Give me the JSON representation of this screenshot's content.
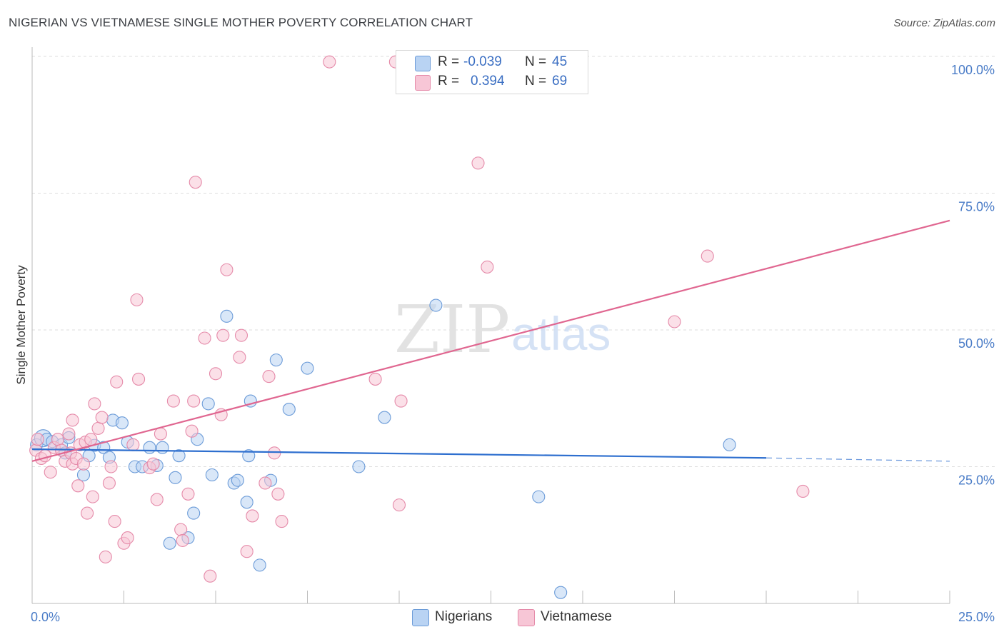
{
  "header": {
    "title": "NIGERIAN VS VIETNAMESE SINGLE MOTHER POVERTY CORRELATION CHART",
    "source": "Source: ZipAtlas.com"
  },
  "legend": {
    "rows": [
      {
        "r_label": "R =",
        "r_value": "-0.039",
        "n_label": "N =",
        "n_value": "45"
      },
      {
        "r_label": "R =",
        "r_value": "0.394",
        "n_label": "N =",
        "n_value": "69"
      }
    ]
  },
  "bottom_legend": {
    "items": [
      {
        "label": "Nigerians"
      },
      {
        "label": "Vietnamese"
      }
    ]
  },
  "watermark": {
    "zip": "ZIP",
    "atlas": "atlas"
  },
  "colors": {
    "nigerians_fill": "#b9d3f3",
    "nigerians_stroke": "#6b9bd8",
    "nigerians_line": "#2e6fcf",
    "vietnamese_fill": "#f7c6d6",
    "vietnamese_stroke": "#e58aa9",
    "vietnamese_line": "#e06690",
    "tick_text": "#4a7cc7",
    "grid": "#dddddd"
  },
  "chart_data": {
    "type": "scatter",
    "title": "NIGERIAN VS VIETNAMESE SINGLE MOTHER POVERTY CORRELATION CHART",
    "xlabel": "",
    "ylabel": "Single Mother Poverty",
    "xlim": [
      0,
      25
    ],
    "ylim": [
      0,
      100
    ],
    "x_tick_labels": [
      "0.0%",
      "25.0%"
    ],
    "y_tick_labels": [
      "25.0%",
      "50.0%",
      "75.0%",
      "100.0%"
    ],
    "y_ticks": [
      25,
      50,
      75,
      100
    ],
    "grid": true,
    "legend_position": "top-center",
    "series": [
      {
        "name": "Nigerians",
        "r": -0.039,
        "n": 45,
        "trend": {
          "x": [
            0,
            20
          ],
          "y": [
            28.2,
            26.6
          ],
          "dashed_to_x": 25,
          "dashed_to_y": 26.0
        },
        "points": [
          {
            "x": 0.12,
            "y": 29.0
          },
          {
            "x": 0.3,
            "y": 30.2
          },
          {
            "x": 0.4,
            "y": 30.0
          },
          {
            "x": 0.55,
            "y": 29.6
          },
          {
            "x": 0.8,
            "y": 29.0
          },
          {
            "x": 0.9,
            "y": 27.5
          },
          {
            "x": 1.0,
            "y": 30.3
          },
          {
            "x": 1.4,
            "y": 23.5
          },
          {
            "x": 1.55,
            "y": 27.0
          },
          {
            "x": 1.7,
            "y": 28.9
          },
          {
            "x": 1.95,
            "y": 28.5
          },
          {
            "x": 2.1,
            "y": 26.7
          },
          {
            "x": 2.2,
            "y": 33.5
          },
          {
            "x": 2.45,
            "y": 33.0
          },
          {
            "x": 2.6,
            "y": 29.5
          },
          {
            "x": 2.8,
            "y": 25.0
          },
          {
            "x": 3.0,
            "y": 25.0
          },
          {
            "x": 3.2,
            "y": 28.5
          },
          {
            "x": 3.4,
            "y": 25.2
          },
          {
            "x": 3.55,
            "y": 28.5
          },
          {
            "x": 3.75,
            "y": 11.0
          },
          {
            "x": 3.9,
            "y": 23.0
          },
          {
            "x": 4.0,
            "y": 27.0
          },
          {
            "x": 4.25,
            "y": 12.0
          },
          {
            "x": 4.4,
            "y": 16.5
          },
          {
            "x": 4.5,
            "y": 30.0
          },
          {
            "x": 4.8,
            "y": 36.5
          },
          {
            "x": 4.9,
            "y": 23.5
          },
          {
            "x": 5.3,
            "y": 52.5
          },
          {
            "x": 5.5,
            "y": 22.0
          },
          {
            "x": 5.6,
            "y": 22.5
          },
          {
            "x": 5.85,
            "y": 18.5
          },
          {
            "x": 5.9,
            "y": 27.0
          },
          {
            "x": 5.95,
            "y": 37.0
          },
          {
            "x": 6.2,
            "y": 7.0
          },
          {
            "x": 6.5,
            "y": 22.5
          },
          {
            "x": 6.65,
            "y": 44.5
          },
          {
            "x": 7.0,
            "y": 35.5
          },
          {
            "x": 7.5,
            "y": 43.0
          },
          {
            "x": 8.9,
            "y": 25.0
          },
          {
            "x": 9.6,
            "y": 34.0
          },
          {
            "x": 11.0,
            "y": 54.5
          },
          {
            "x": 13.8,
            "y": 19.5
          },
          {
            "x": 14.4,
            "y": 2.0
          },
          {
            "x": 19.0,
            "y": 29.0
          }
        ]
      },
      {
        "name": "Vietnamese",
        "r": 0.394,
        "n": 69,
        "trend": {
          "x": [
            0,
            25
          ],
          "y": [
            26.0,
            70.0
          ]
        },
        "points": [
          {
            "x": 0.1,
            "y": 28.0
          },
          {
            "x": 0.15,
            "y": 30.0
          },
          {
            "x": 0.25,
            "y": 26.5
          },
          {
            "x": 0.35,
            "y": 27.0
          },
          {
            "x": 0.5,
            "y": 24.0
          },
          {
            "x": 0.6,
            "y": 28.5
          },
          {
            "x": 0.7,
            "y": 30.0
          },
          {
            "x": 0.8,
            "y": 28.0
          },
          {
            "x": 0.9,
            "y": 26.0
          },
          {
            "x": 1.0,
            "y": 31.0
          },
          {
            "x": 1.05,
            "y": 27.5
          },
          {
            "x": 1.1,
            "y": 25.5
          },
          {
            "x": 1.1,
            "y": 33.5
          },
          {
            "x": 1.2,
            "y": 26.5
          },
          {
            "x": 1.25,
            "y": 21.5
          },
          {
            "x": 1.3,
            "y": 29.0
          },
          {
            "x": 1.4,
            "y": 25.5
          },
          {
            "x": 1.45,
            "y": 29.5
          },
          {
            "x": 1.5,
            "y": 16.5
          },
          {
            "x": 1.6,
            "y": 30.0
          },
          {
            "x": 1.65,
            "y": 19.5
          },
          {
            "x": 1.7,
            "y": 36.5
          },
          {
            "x": 1.8,
            "y": 32.0
          },
          {
            "x": 1.9,
            "y": 34.0
          },
          {
            "x": 2.0,
            "y": 8.5
          },
          {
            "x": 2.1,
            "y": 22.0
          },
          {
            "x": 2.15,
            "y": 25.0
          },
          {
            "x": 2.25,
            "y": 15.0
          },
          {
            "x": 2.3,
            "y": 40.5
          },
          {
            "x": 2.5,
            "y": 11.0
          },
          {
            "x": 2.6,
            "y": 12.0
          },
          {
            "x": 2.75,
            "y": 29.0
          },
          {
            "x": 2.85,
            "y": 55.5
          },
          {
            "x": 2.9,
            "y": 41.0
          },
          {
            "x": 3.2,
            "y": 24.8
          },
          {
            "x": 3.3,
            "y": 25.5
          },
          {
            "x": 3.4,
            "y": 19.0
          },
          {
            "x": 3.5,
            "y": 31.0
          },
          {
            "x": 3.85,
            "y": 37.0
          },
          {
            "x": 4.05,
            "y": 13.5
          },
          {
            "x": 4.1,
            "y": 11.5
          },
          {
            "x": 4.25,
            "y": 20.0
          },
          {
            "x": 4.35,
            "y": 31.5
          },
          {
            "x": 4.4,
            "y": 37.0
          },
          {
            "x": 4.45,
            "y": 77.0
          },
          {
            "x": 4.7,
            "y": 48.5
          },
          {
            "x": 4.85,
            "y": 5.0
          },
          {
            "x": 5.0,
            "y": 42.0
          },
          {
            "x": 5.15,
            "y": 34.5
          },
          {
            "x": 5.2,
            "y": 49.0
          },
          {
            "x": 5.3,
            "y": 61.0
          },
          {
            "x": 5.65,
            "y": 45.0
          },
          {
            "x": 5.7,
            "y": 49.0
          },
          {
            "x": 5.85,
            "y": 9.5
          },
          {
            "x": 6.0,
            "y": 16.0
          },
          {
            "x": 6.35,
            "y": 22.0
          },
          {
            "x": 6.45,
            "y": 41.5
          },
          {
            "x": 6.6,
            "y": 27.5
          },
          {
            "x": 6.7,
            "y": 20.0
          },
          {
            "x": 6.8,
            "y": 15.0
          },
          {
            "x": 8.1,
            "y": 99.0
          },
          {
            "x": 9.35,
            "y": 41.0
          },
          {
            "x": 9.9,
            "y": 99.0
          },
          {
            "x": 10.0,
            "y": 18.0
          },
          {
            "x": 10.05,
            "y": 37.0
          },
          {
            "x": 12.15,
            "y": 80.5
          },
          {
            "x": 12.4,
            "y": 61.5
          },
          {
            "x": 17.5,
            "y": 51.5
          },
          {
            "x": 18.4,
            "y": 63.5
          },
          {
            "x": 21.0,
            "y": 20.5
          }
        ]
      }
    ]
  }
}
